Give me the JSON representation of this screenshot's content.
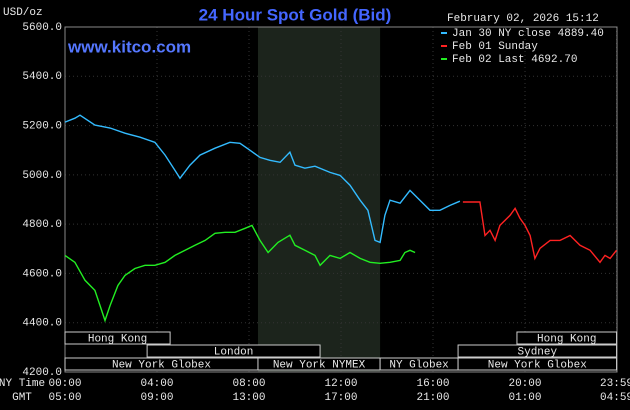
{
  "chart_data": {
    "type": "line",
    "title": "24 Hour Spot Gold (Bid)",
    "unit_label": "USD/oz",
    "timestamp": "February 02, 2026 15:12",
    "site": "www.kitco.com",
    "x_row_labels": [
      "NY Time",
      "GMT"
    ],
    "xlim": [
      0,
      24
    ],
    "ylim": [
      4200,
      5600
    ],
    "yticks": [
      {
        "value": 5600,
        "label": "5600.0"
      },
      {
        "value": 5400,
        "label": "5400.0"
      },
      {
        "value": 5200,
        "label": "5200.0"
      },
      {
        "value": 5000,
        "label": "5000.0"
      },
      {
        "value": 4800,
        "label": "4800.0"
      },
      {
        "value": 4600,
        "label": "4600.0"
      },
      {
        "value": 4400,
        "label": "4400.0"
      },
      {
        "value": 4200,
        "label": "4200.0"
      }
    ],
    "xticks": [
      {
        "value": 0,
        "label": "00:00"
      },
      {
        "value": 4,
        "label": "04:00"
      },
      {
        "value": 8,
        "label": "08:00"
      },
      {
        "value": 12,
        "label": "12:00"
      },
      {
        "value": 16,
        "label": "16:00"
      },
      {
        "value": 20,
        "label": "20:00"
      },
      {
        "value": 23.98,
        "label": "23:59"
      }
    ],
    "gmt_labels": [
      "05:00",
      "09:00",
      "13:00",
      "17:00",
      "21:00",
      "01:00",
      "04:59"
    ],
    "grid": true,
    "series": [
      {
        "name": "Jan 30 NY close 4889.40",
        "color": "#33bbff",
        "x": [
          0,
          0.43,
          0.65,
          1.3,
          1.96,
          2.61,
          3.26,
          3.91,
          4.35,
          4.78,
          5,
          5.43,
          5.87,
          6.52,
          7.17,
          7.61,
          8.04,
          8.48,
          8.91,
          9.35,
          9.78,
          10,
          10.43,
          10.87,
          11.52,
          11.96,
          12.39,
          12.83,
          13.17,
          13.48,
          13.7,
          13.91,
          14.13,
          14.57,
          15,
          15.43,
          15.87,
          16.3,
          16.74,
          17.17
        ],
        "values": [
          5214,
          5230,
          5242,
          5202,
          5190,
          5169,
          5153,
          5132,
          5080,
          5019,
          4986,
          5039,
          5080,
          5108,
          5132,
          5128,
          5100,
          5071,
          5059,
          5051,
          5092,
          5039,
          5027,
          5035,
          5010,
          4998,
          4958,
          4897,
          4856,
          4734,
          4726,
          4836,
          4897,
          4885,
          4937,
          4897,
          4856,
          4856,
          4876,
          4893
        ]
      },
      {
        "name": "Feb 01 Sunday",
        "color": "#ff2222",
        "x": [
          17.3,
          18.04,
          18.26,
          18.48,
          18.7,
          18.91,
          19.35,
          19.57,
          19.78,
          20,
          20.22,
          20.43,
          20.65,
          21.09,
          21.52,
          21.96,
          22.39,
          22.83,
          23.26,
          23.48,
          23.7,
          23.98
        ],
        "values": [
          4890,
          4890,
          4754,
          4775,
          4734,
          4795,
          4836,
          4864,
          4824,
          4795,
          4754,
          4661,
          4702,
          4734,
          4734,
          4754,
          4714,
          4694,
          4645,
          4673,
          4661,
          4694
        ]
      },
      {
        "name": "Feb 02 Last 4692.70",
        "color": "#22ee22",
        "x": [
          0,
          0.43,
          0.87,
          1.3,
          1.52,
          1.74,
          1.96,
          2.3,
          2.61,
          3.04,
          3.48,
          3.91,
          4.35,
          4.78,
          5.22,
          5.65,
          6.09,
          6.52,
          6.96,
          7.39,
          7.83,
          8.13,
          8.48,
          8.83,
          9.26,
          9.78,
          10,
          10.43,
          10.87,
          11.09,
          11.52,
          11.96,
          12.39,
          12.83,
          13.26,
          13.7,
          14.13,
          14.57,
          14.78,
          15,
          15.22
        ],
        "values": [
          4673,
          4645,
          4572,
          4531,
          4470,
          4409,
          4470,
          4551,
          4592,
          4620,
          4633,
          4633,
          4645,
          4673,
          4694,
          4714,
          4734,
          4763,
          4767,
          4767,
          4783,
          4795,
          4734,
          4685,
          4726,
          4755,
          4714,
          4694,
          4673,
          4633,
          4673,
          4661,
          4685,
          4661,
          4645,
          4641,
          4645,
          4653,
          4685,
          4694,
          4685
        ]
      }
    ],
    "sessions": [
      {
        "name": "Hong Kong",
        "start": 0,
        "end": 4.57,
        "row": 0
      },
      {
        "name": "Hong Kong",
        "start": 19.65,
        "end": 23.98,
        "row": 0
      },
      {
        "name": "London",
        "start": 3.57,
        "end": 11.09,
        "row": 1
      },
      {
        "name": "Sydney",
        "start": 17.09,
        "end": 23.98,
        "row": 1
      },
      {
        "name": "New York Globex",
        "start": 0,
        "end": 8.39,
        "row": 2
      },
      {
        "name": "New York NYMEX",
        "start": 8.39,
        "end": 13.7,
        "row": 2,
        "shaded": true
      },
      {
        "name": "NY Globex",
        "start": 13.7,
        "end": 17.09,
        "row": 2
      },
      {
        "name": "New York Globex",
        "start": 17.09,
        "end": 23.98,
        "row": 2
      }
    ]
  }
}
